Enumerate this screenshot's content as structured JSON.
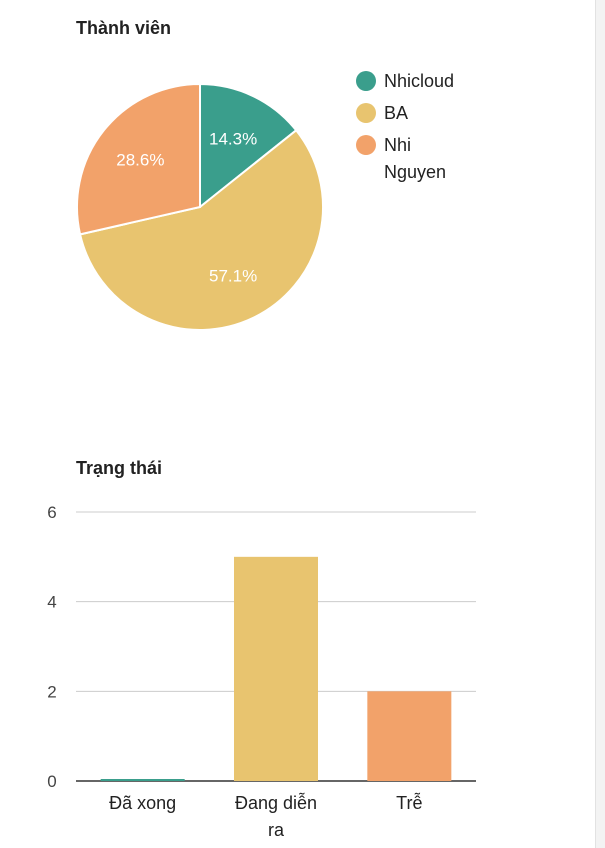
{
  "charts": {
    "pie": {
      "title": "Thành viên"
    },
    "bar": {
      "title": "Trạng thái"
    }
  },
  "chart_data": [
    {
      "type": "pie",
      "title": "Thành viên",
      "slices": [
        {
          "label": "Nhicloud",
          "value": 1,
          "percent_label": "14.3%",
          "color": "#3a9e8c"
        },
        {
          "label": "BA",
          "value": 4,
          "percent_label": "57.1%",
          "color": "#e8c46f"
        },
        {
          "label": "Nhi Nguyen",
          "value": 2,
          "percent_label": "28.6%",
          "color": "#f2a26a"
        }
      ],
      "legend_position": "right"
    },
    {
      "type": "bar",
      "title": "Trạng thái",
      "categories": [
        "Đã xong",
        "Đang diễn ra",
        "Trễ"
      ],
      "values": [
        0,
        5,
        2
      ],
      "colors": [
        "#3a9e8c",
        "#e8c46f",
        "#f2a26a"
      ],
      "ylim": [
        0,
        6
      ],
      "yticks": [
        0,
        2,
        4,
        6
      ],
      "grid": true
    }
  ]
}
